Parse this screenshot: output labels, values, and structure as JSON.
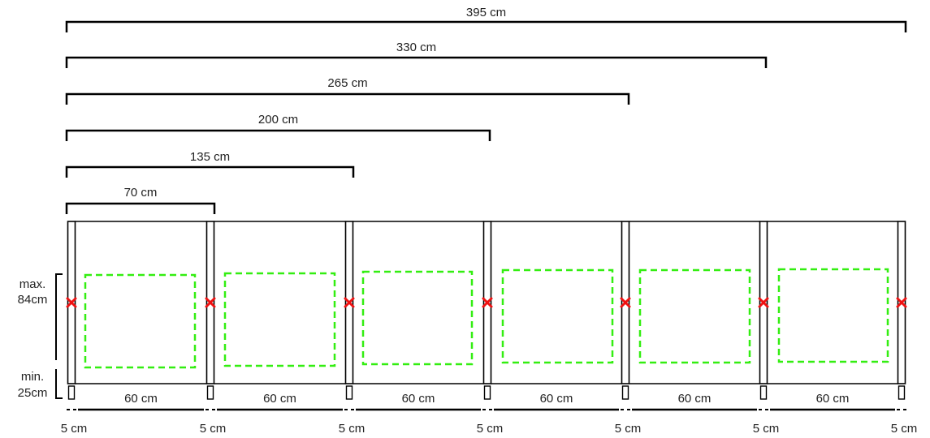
{
  "span_dimensions": [
    "395 cm",
    "330 cm",
    "265 cm",
    "200 cm",
    "135 cm",
    "70 cm"
  ],
  "height_labels": {
    "max_line1": "max.",
    "max_line2": "84cm",
    "min_line1": "min.",
    "min_line2": "25cm"
  },
  "panel_width_label": "60 cm",
  "panel_count": 6,
  "post_width_label": "5 cm",
  "post_count": 7,
  "colors": {
    "window_outline": "#33ee11",
    "anchor_mark": "#ee1111",
    "lines": "#000000"
  },
  "icons": {
    "anchor": "red-x-icon"
  }
}
